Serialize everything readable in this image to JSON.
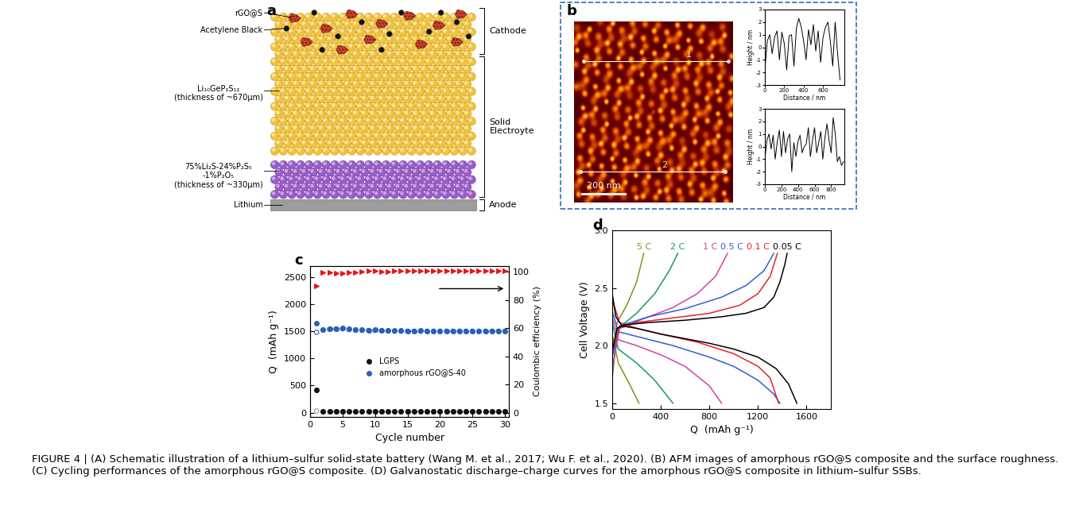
{
  "caption": "FIGURE 4 | (A) Schematic illustration of a lithium–sulfur solid-state battery (Wang M. et al., 2017; Wu F. et al., 2020). (B) AFM images of amorphous rGO@S composite and the surface roughness. (C) Cycling performances of the amorphous rGO@S composite. (D) Galvanostatic discharge–charge curves for the amorphous rGO@S composite in lithium–sulfur SSBs.",
  "panel_a": {
    "panel_label": "a",
    "rgo_s": "rGO@S",
    "acetylene_black": "Acetylene Black",
    "lgps": "Li₁₀GeP₂S₁₂\n(thickness of ~670μm)",
    "glass": "75%Li₂S-24%P₂S₅\n-1%P₂O₅\n(thickness of ~330μm)",
    "lithium": "Lithium",
    "regions": [
      "Cathode",
      "Solid\nElectroyte",
      "Anode"
    ]
  },
  "panel_b": {
    "panel_label": "b",
    "scale_bar": "200 nm",
    "line_labels": [
      "1",
      "2"
    ]
  },
  "chart_data": [
    {
      "type": "line",
      "x_label": "Distance / nm",
      "y_label": "Height / nm",
      "color": "#000000",
      "x": [
        0,
        25,
        50,
        75,
        100,
        125,
        150,
        175,
        200,
        225,
        250,
        275,
        300,
        325,
        350,
        375,
        400,
        425,
        450,
        475,
        500,
        525,
        550,
        575,
        600,
        625,
        650,
        675,
        700,
        725,
        750,
        775
      ],
      "values": [
        -1.8,
        0.5,
        1.0,
        -0.5,
        0.8,
        1.3,
        -1.0,
        1.2,
        0.3,
        -1.8,
        0.9,
        1.0,
        -1.5,
        1.5,
        2.3,
        1.6,
        0.5,
        -1.0,
        1.4,
        0.2,
        1.8,
        -0.3,
        1.3,
        -1.2,
        0.8,
        1.6,
        2.0,
        0.5,
        -1.5,
        2.0,
        -0.5,
        -2.6
      ],
      "xlim": [
        0,
        820
      ],
      "xticks": [
        0,
        200,
        400,
        600
      ],
      "ylim": [
        -3,
        3
      ],
      "yticks": [
        -3,
        -2,
        -1,
        0,
        1,
        2,
        3
      ]
    },
    {
      "type": "line",
      "x_label": "Distance / nm",
      "y_label": "Height / nm",
      "color": "#000000",
      "x": [
        0,
        25,
        50,
        75,
        100,
        125,
        150,
        175,
        200,
        225,
        250,
        275,
        300,
        325,
        350,
        375,
        400,
        425,
        450,
        475,
        500,
        525,
        550,
        575,
        600,
        625,
        650,
        675,
        700,
        725,
        750,
        775,
        800,
        825,
        850,
        875,
        900,
        925,
        950
      ],
      "values": [
        -1.0,
        0.5,
        1.0,
        -0.2,
        0.9,
        -1.0,
        0.4,
        1.3,
        -0.8,
        1.2,
        -0.5,
        0.6,
        1.0,
        -2.0,
        0.3,
        -0.8,
        0.4,
        0.9,
        -0.5,
        0.0,
        0.2,
        1.5,
        -0.8,
        0.5,
        1.5,
        -0.5,
        0.3,
        1.2,
        -1.0,
        0.7,
        1.8,
        0.5,
        -0.5,
        2.3,
        1.0,
        -1.2,
        -0.8,
        -1.5,
        -1.2
      ],
      "xlim": [
        0,
        960
      ],
      "xticks": [
        0,
        200,
        400,
        600,
        800
      ],
      "ylim": [
        -3,
        3
      ],
      "yticks": [
        -3,
        -2,
        -1,
        0,
        1,
        2,
        3
      ]
    },
    {
      "type": "scatter",
      "panel_label": "c",
      "x_label": "Cycle number",
      "y_label": "Q  (mAh g⁻¹)",
      "y2_label": "Coulombic efficiency (%)",
      "legend": "center",
      "x": [
        1,
        2,
        3,
        4,
        5,
        6,
        7,
        8,
        9,
        10,
        11,
        12,
        13,
        14,
        15,
        16,
        17,
        18,
        19,
        20,
        21,
        22,
        23,
        24,
        25,
        26,
        27,
        28,
        29,
        30
      ],
      "xlim": [
        0,
        30.6
      ],
      "xticks": [
        0,
        5,
        10,
        15,
        20,
        25,
        30
      ],
      "ylim": [
        -80,
        2700
      ],
      "yticks": [
        0,
        500,
        1000,
        1500,
        2000,
        2500
      ],
      "y2lim": [
        -3,
        104
      ],
      "y2ticks": [
        0,
        20,
        40,
        60,
        80,
        100
      ],
      "series": [
        {
          "name": "LGPS",
          "color": "#111111",
          "marker": "filled_circle",
          "values": [
            420,
            25,
            25,
            25,
            25,
            20,
            20,
            20,
            20,
            20,
            20,
            20,
            20,
            20,
            20,
            20,
            20,
            20,
            20,
            20,
            20,
            20,
            20,
            20,
            20,
            20,
            20,
            20,
            20,
            20
          ]
        },
        {
          "color": "#9a9a9a",
          "marker": "open_circle",
          "values": [
            30,
            18,
            18,
            18,
            18,
            18,
            18,
            18,
            18,
            18,
            18,
            18,
            18,
            18,
            18,
            18,
            18,
            18,
            18,
            18,
            18,
            18,
            18,
            18,
            18,
            18,
            18,
            18,
            18,
            18
          ]
        },
        {
          "name": "amorphous rGO@S-40",
          "color": "#2b5fb4",
          "marker": "filled_circle",
          "values": [
            1650,
            1530,
            1545,
            1550,
            1555,
            1540,
            1530,
            1525,
            1520,
            1525,
            1520,
            1515,
            1510,
            1510,
            1505,
            1505,
            1510,
            1505,
            1505,
            1505,
            1505,
            1505,
            1505,
            1505,
            1505,
            1505,
            1505,
            1505,
            1505,
            1505
          ]
        },
        {
          "color": "#2b5fb4",
          "marker": "open_circle",
          "values": [
            1480,
            1520,
            1535,
            1540,
            1545,
            1530,
            1520,
            1515,
            1512,
            1515,
            1510,
            1505,
            1500,
            1500,
            1500,
            1500,
            1500,
            1500,
            1500,
            1500,
            1500,
            1500,
            1500,
            1500,
            1500,
            1500,
            1500,
            1500,
            1500,
            1500
          ]
        },
        {
          "color": "#e8161b",
          "marker": "triangle_right",
          "axis": "y2",
          "values": [
            90,
            99.5,
            99.5,
            99,
            99,
            99.5,
            99.5,
            100,
            100.5,
            100.5,
            100,
            100,
            100.5,
            100.5,
            100.5,
            100.5,
            100.5,
            100.5,
            100.5,
            100.5,
            100.5,
            100.5,
            100.5,
            100.5,
            100.5,
            100.5,
            100.5,
            100.5,
            100.5,
            100.5
          ]
        }
      ]
    },
    {
      "type": "line",
      "panel_label": "d",
      "x_label": "Q  (mAh g⁻¹)",
      "y_label": "Cell Voltage (V)",
      "xlim": [
        0,
        1800
      ],
      "xticks": [
        0,
        400,
        800,
        1200,
        1600
      ],
      "ylim": [
        1.45,
        3.0
      ],
      "yticks": [
        1.5,
        2.0,
        2.5,
        3.0
      ],
      "series": [
        {
          "name": "5 C",
          "color": "#8c8c1a",
          "discharge": {
            "x": [
              0,
              50,
              150,
              220
            ],
            "values": [
              2.1,
              1.85,
              1.65,
              1.5
            ]
          },
          "charge": {
            "x": [
              0,
              40,
              120,
              200,
              260
            ],
            "values": [
              1.7,
              2.2,
              2.35,
              2.55,
              2.8
            ]
          }
        },
        {
          "name": "2 C",
          "color": "#1a9a5a",
          "discharge": {
            "x": [
              0,
              50,
              200,
              350,
              500
            ],
            "values": [
              2.2,
              1.97,
              1.85,
              1.7,
              1.5
            ]
          },
          "charge": {
            "x": [
              0,
              50,
              200,
              350,
              470,
              540
            ],
            "values": [
              1.75,
              2.15,
              2.28,
              2.45,
              2.65,
              2.8
            ]
          }
        },
        {
          "name": "1 C",
          "color": "#d63fa8",
          "discharge": {
            "x": [
              0,
              50,
              200,
              400,
              600,
              800,
              900
            ],
            "values": [
              2.25,
              2.05,
              2.0,
              1.92,
              1.82,
              1.65,
              1.5
            ]
          },
          "charge": {
            "x": [
              0,
              60,
              300,
              500,
              700,
              850,
              950
            ],
            "values": [
              1.8,
              2.15,
              2.25,
              2.33,
              2.45,
              2.6,
              2.8
            ]
          }
        },
        {
          "name": "0.5 C",
          "color": "#2f5fd0",
          "discharge": {
            "x": [
              0,
              50,
              200,
              500,
              800,
              1000,
              1200,
              1330,
              1380
            ],
            "values": [
              2.3,
              2.12,
              2.08,
              2.0,
              1.9,
              1.82,
              1.7,
              1.58,
              1.5
            ]
          },
          "charge": {
            "x": [
              0,
              60,
              300,
              600,
              900,
              1100,
              1250,
              1330
            ],
            "values": [
              1.9,
              2.17,
              2.25,
              2.32,
              2.42,
              2.52,
              2.65,
              2.8
            ]
          }
        },
        {
          "name": "0.1 C",
          "color": "#e8202a",
          "discharge": {
            "x": [
              0,
              60,
              200,
              400,
              700,
              1000,
              1200,
              1300,
              1370
            ],
            "values": [
              2.4,
              2.2,
              2.15,
              2.1,
              2.03,
              1.93,
              1.82,
              1.72,
              1.5
            ]
          },
          "charge": {
            "x": [
              0,
              60,
              200,
              500,
              800,
              1050,
              1200,
              1300,
              1360
            ],
            "values": [
              1.95,
              2.15,
              2.2,
              2.24,
              2.28,
              2.35,
              2.45,
              2.6,
              2.8
            ]
          }
        },
        {
          "name": "0.05 C",
          "color": "#000000",
          "discharge": {
            "x": [
              0,
              30,
              80,
              200,
              400,
              600,
              800,
              1000,
              1200,
              1350,
              1450,
              1520
            ],
            "values": [
              2.45,
              2.25,
              2.17,
              2.15,
              2.1,
              2.06,
              2.02,
              1.97,
              1.9,
              1.8,
              1.67,
              1.5
            ]
          },
          "charge": {
            "x": [
              0,
              40,
              100,
              300,
              600,
              900,
              1100,
              1250,
              1330,
              1380,
              1420,
              1440
            ],
            "values": [
              1.95,
              2.15,
              2.18,
              2.2,
              2.22,
              2.25,
              2.28,
              2.33,
              2.42,
              2.55,
              2.7,
              2.8
            ]
          }
        }
      ]
    }
  ]
}
